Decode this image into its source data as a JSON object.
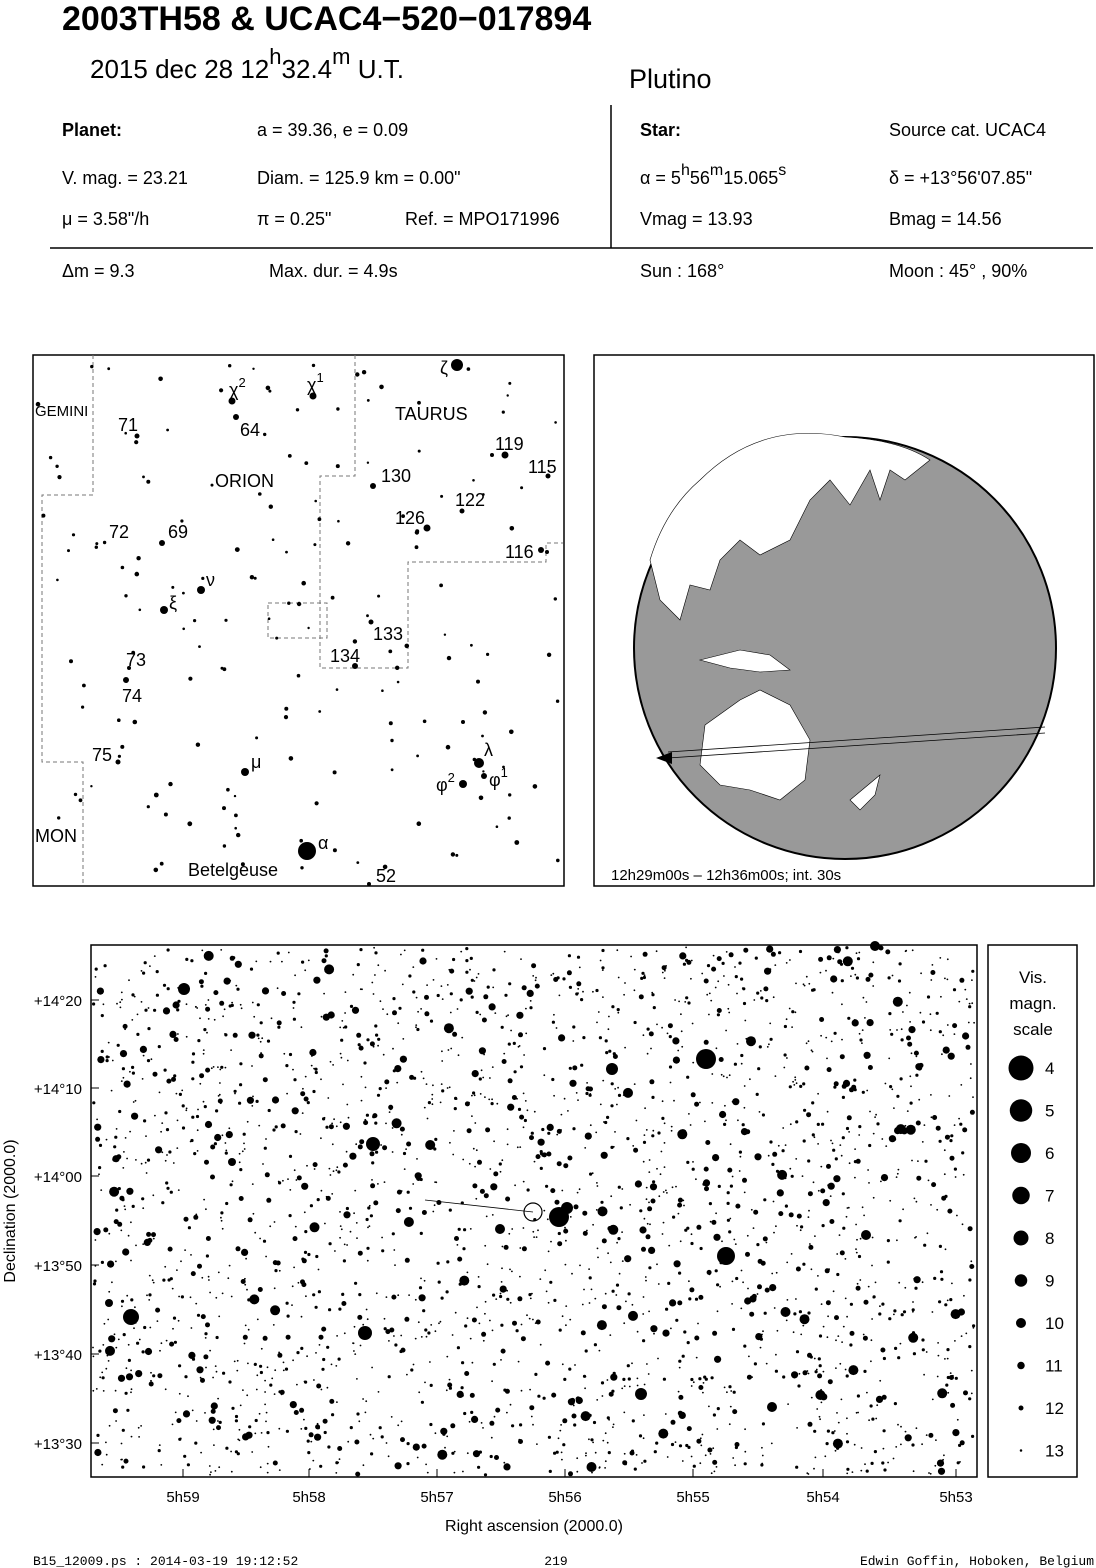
{
  "header": {
    "title": "2003TH58  &  UCAC4−520−017894",
    "date": "2015 dec 28  12",
    "hour_unit": "h",
    "minutes": "32.4",
    "minute_unit": "m",
    "time_scale": " U.T.",
    "class": "Plutino"
  },
  "info": {
    "planet_label": "Planet:",
    "orbit": "a = 39.36, e = 0.09",
    "vmag": "V. mag. = 23.21",
    "diam": "Diam. = 125.9 km = 0.00\"",
    "mu": "μ =  3.58\"/h",
    "pi": "π =  0.25\"",
    "ref": "Ref. = MPO171996",
    "star_label": "Star:",
    "source": "Source cat.  UCAC4",
    "alpha_prefix": "α =  5",
    "alpha_h": "h",
    "alpha_min": "56",
    "alpha_m": "m",
    "alpha_sec": "15.065",
    "alpha_s": "s",
    "delta": "δ = +13°56'07.85\"",
    "star_vmag": "Vmag = 13.93",
    "bmag": "Bmag = 14.56",
    "dm": "Δm = 9.3",
    "maxdur": "Max. dur. = 4.9s",
    "sun": "Sun : 168°",
    "moon": "Moon :  45° , 90%"
  },
  "finder": {
    "labels": [
      {
        "text": "GEMINI"
      },
      {
        "text": "71"
      },
      {
        "text": "χ",
        "sup": "2"
      },
      {
        "text": "64"
      },
      {
        "text": "χ",
        "sup": "1"
      },
      {
        "text": "ζ"
      },
      {
        "text": "TAURUS"
      },
      {
        "text": "119"
      },
      {
        "text": "115"
      },
      {
        "text": "ORION"
      },
      {
        "text": "130"
      },
      {
        "text": "122"
      },
      {
        "text": "126"
      },
      {
        "text": "72"
      },
      {
        "text": "69"
      },
      {
        "text": "116"
      },
      {
        "text": "ν"
      },
      {
        "text": "ξ"
      },
      {
        "text": "133"
      },
      {
        "text": "134"
      },
      {
        "text": "73"
      },
      {
        "text": "74"
      },
      {
        "text": "λ"
      },
      {
        "text": "75"
      },
      {
        "text": "μ"
      },
      {
        "text": "φ",
        "sup": "2"
      },
      {
        "text": "φ",
        "sup": "1"
      },
      {
        "text": "MON"
      },
      {
        "text": "α"
      },
      {
        "text": "Betelgeuse"
      },
      {
        "text": "52"
      }
    ]
  },
  "globe": {
    "caption": "12h29m00s – 12h36m00s; int. 30s"
  },
  "star_chart": {
    "y_label": "Declination (2000.0)",
    "x_label": "Right ascension (2000.0)",
    "yticks": [
      "+14°20",
      "+14°10",
      "+14°00",
      "+13°50",
      "+13°40",
      "+13°30"
    ],
    "xticks": [
      "5h59",
      "5h58",
      "5h57",
      "5h56",
      "5h55",
      "5h54",
      "5h53"
    ],
    "legend": {
      "title": [
        "Vis.",
        "magn.",
        "scale"
      ],
      "magnitudes": [
        4,
        5,
        6,
        7,
        8,
        9,
        10,
        11,
        12,
        13
      ]
    }
  },
  "footer": {
    "file": "B15_12009.ps : 2014-03-19 19:12:52",
    "page": "219",
    "author": "Edwin Goffin, Hoboken, Belgium"
  }
}
